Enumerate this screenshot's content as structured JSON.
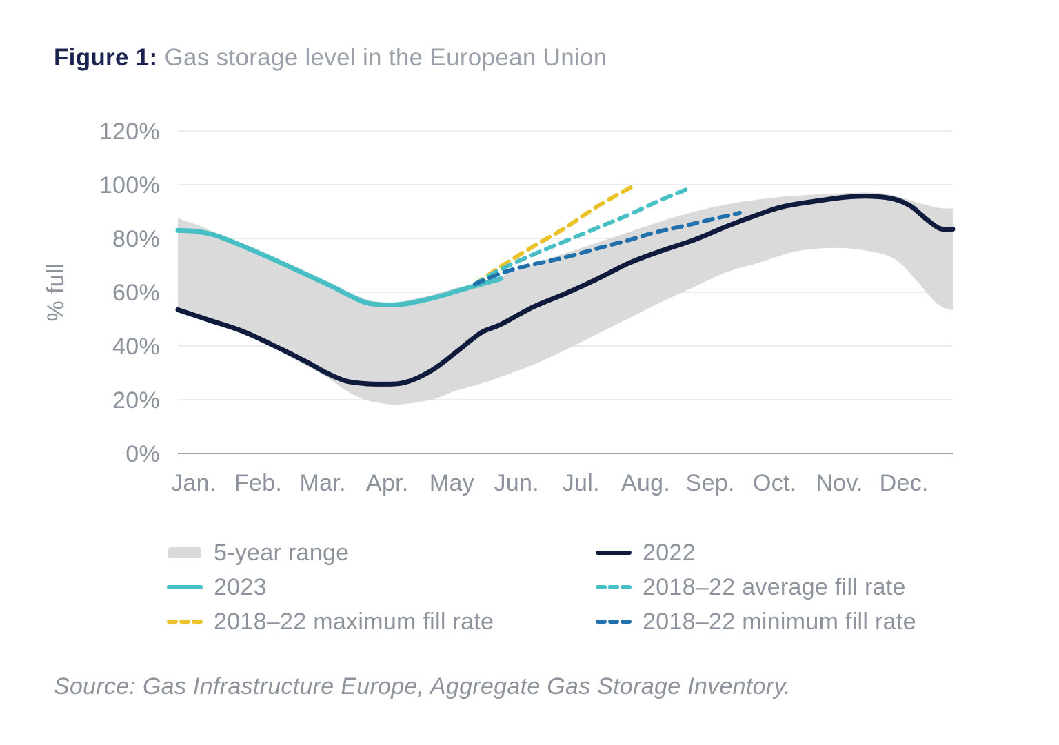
{
  "title": {
    "prefix": "Figure 1:",
    "text": "Gas storage level in the European Union"
  },
  "source": "Source: Gas Infrastructure Europe, Aggregate Gas Storage Inventory.",
  "colors": {
    "title_prefix": "#1B2351",
    "title_text": "#9AA0A9",
    "axis_text": "#8D939C",
    "gridline": "#E4E5E7",
    "axis_line": "#9CA1A7",
    "band": "#DADADB",
    "navy": "#0F1B3D",
    "teal": "#47BFC5",
    "yellow": "#EAC32B",
    "blue": "#2170AC",
    "background": "#FFFFFF"
  },
  "chart_data": {
    "type": "area+line",
    "title": "Gas storage level in the European Union",
    "ylabel": "% full",
    "ylim": [
      0,
      120
    ],
    "ytick_step": 20,
    "ytick_labels": [
      "0%",
      "20%",
      "40%",
      "60%",
      "80%",
      "100%",
      "120%"
    ],
    "x_months": [
      "Jan.",
      "Feb.",
      "Mar.",
      "Apr.",
      "May",
      "Jun.",
      "Jul.",
      "Aug.",
      "Sep.",
      "Oct.",
      "Nov.",
      "Dec."
    ],
    "x_unit": "months, 0 = Jan 1 through 12 = Dec 31",
    "grid": "horizontal gridlines only",
    "legend_position": "below chart, two columns",
    "band": {
      "name": "5-year range",
      "slug": "band-5-year-range",
      "top": [
        [
          0,
          87.5
        ],
        [
          0.3,
          85
        ],
        [
          0.6,
          82
        ],
        [
          1,
          78.2
        ],
        [
          1.5,
          73
        ],
        [
          2,
          67.5
        ],
        [
          2.4,
          63
        ],
        [
          2.7,
          59.5
        ],
        [
          3,
          56.8
        ],
        [
          3.3,
          56
        ],
        [
          3.55,
          57
        ],
        [
          3.9,
          58.8
        ],
        [
          4.3,
          61.5
        ],
        [
          4.7,
          63.8
        ],
        [
          5,
          66
        ],
        [
          5.5,
          70.5
        ],
        [
          6,
          74.5
        ],
        [
          6.5,
          78.5
        ],
        [
          7,
          82.5
        ],
        [
          7.5,
          86.5
        ],
        [
          8,
          90
        ],
        [
          8.5,
          92.7
        ],
        [
          9,
          94.5
        ],
        [
          9.5,
          95.8
        ],
        [
          10,
          96.5
        ],
        [
          10.5,
          97
        ],
        [
          10.9,
          96.8
        ],
        [
          11.2,
          95.2
        ],
        [
          11.5,
          93
        ],
        [
          11.8,
          91.3
        ],
        [
          12,
          91.2
        ]
      ],
      "bottom": [
        [
          0,
          53.3
        ],
        [
          0.5,
          49.2
        ],
        [
          1,
          45
        ],
        [
          1.5,
          39
        ],
        [
          2,
          32.5
        ],
        [
          2.3,
          28.5
        ],
        [
          2.6,
          23.5
        ],
        [
          2.9,
          20
        ],
        [
          3.2,
          18.5
        ],
        [
          3.4,
          18.2
        ],
        [
          3.7,
          19
        ],
        [
          4,
          20.5
        ],
        [
          4.3,
          23.3
        ],
        [
          4.7,
          26
        ],
        [
          5,
          28.5
        ],
        [
          5.5,
          33
        ],
        [
          6,
          38.5
        ],
        [
          6.5,
          44.5
        ],
        [
          7,
          50.5
        ],
        [
          7.5,
          56.5
        ],
        [
          8,
          62
        ],
        [
          8.5,
          67.5
        ],
        [
          9,
          71
        ],
        [
          9.5,
          74.8
        ],
        [
          9.9,
          76.2
        ],
        [
          10.3,
          76.4
        ],
        [
          10.7,
          75.3
        ],
        [
          11,
          73.5
        ],
        [
          11.2,
          70.5
        ],
        [
          11.45,
          64
        ],
        [
          11.7,
          57
        ],
        [
          11.85,
          54.3
        ],
        [
          12,
          53.3
        ]
      ]
    },
    "series": [
      {
        "name": "2022",
        "slug": "line-2022",
        "style": "solid",
        "color": "navy",
        "points": [
          [
            0,
            53.5
          ],
          [
            0.5,
            49.5
          ],
          [
            1,
            45.5
          ],
          [
            1.5,
            40
          ],
          [
            2,
            34
          ],
          [
            2.3,
            30
          ],
          [
            2.6,
            27
          ],
          [
            2.9,
            26
          ],
          [
            3.2,
            25.8
          ],
          [
            3.45,
            26.1
          ],
          [
            3.7,
            28
          ],
          [
            4,
            32
          ],
          [
            4.35,
            38.5
          ],
          [
            4.7,
            45
          ],
          [
            5,
            48
          ],
          [
            5.5,
            54.5
          ],
          [
            6,
            59.5
          ],
          [
            6.5,
            65
          ],
          [
            7,
            71
          ],
          [
            7.5,
            75.5
          ],
          [
            8,
            79.5
          ],
          [
            8.5,
            84.5
          ],
          [
            9,
            89
          ],
          [
            9.4,
            92
          ],
          [
            10,
            94.3
          ],
          [
            10.4,
            95.5
          ],
          [
            10.8,
            95.6
          ],
          [
            11.1,
            94.6
          ],
          [
            11.35,
            92
          ],
          [
            11.6,
            87
          ],
          [
            11.8,
            83.7
          ],
          [
            12,
            83.5
          ]
        ]
      },
      {
        "name": "2023",
        "slug": "line-2023",
        "style": "solid",
        "color": "teal",
        "points": [
          [
            0,
            83
          ],
          [
            0.3,
            82.6
          ],
          [
            0.6,
            81
          ],
          [
            1,
            77.2
          ],
          [
            1.5,
            72
          ],
          [
            2,
            66.5
          ],
          [
            2.4,
            62
          ],
          [
            2.6,
            59.5
          ],
          [
            2.9,
            56.2
          ],
          [
            3.2,
            55.3
          ],
          [
            3.5,
            55.6
          ],
          [
            3.8,
            57
          ],
          [
            4.1,
            58.8
          ],
          [
            4.4,
            61
          ],
          [
            4.7,
            63
          ],
          [
            5,
            65
          ]
        ]
      },
      {
        "name": "2018–22 maximum fill rate",
        "slug": "line-2018-22-maximum-fill-rate",
        "style": "dashed",
        "color": "yellow",
        "points": [
          [
            4.6,
            63
          ],
          [
            5,
            69.5
          ],
          [
            5.5,
            77
          ],
          [
            6,
            84
          ],
          [
            6.5,
            92
          ],
          [
            7.05,
            99.5
          ]
        ]
      },
      {
        "name": "2018–22 average fill rate",
        "slug": "line-2018-22-average-fill-rate",
        "style": "dashed",
        "color": "teal",
        "points": [
          [
            4.6,
            63
          ],
          [
            5,
            68.5
          ],
          [
            5.5,
            74
          ],
          [
            6,
            79
          ],
          [
            6.5,
            84
          ],
          [
            7,
            89
          ],
          [
            7.45,
            94
          ],
          [
            7.9,
            98.5
          ]
        ]
      },
      {
        "name": "2018–22 minimum fill rate",
        "slug": "line-2018-22-minimum-fill-rate",
        "style": "dashed",
        "color": "blue",
        "points": [
          [
            4.6,
            63
          ],
          [
            5,
            67
          ],
          [
            5.4,
            69.8
          ],
          [
            6,
            73
          ],
          [
            6.5,
            76.3
          ],
          [
            7,
            79.5
          ],
          [
            7.4,
            82.3
          ],
          [
            7.9,
            85
          ],
          [
            8.3,
            87.3
          ],
          [
            8.7,
            89.5
          ]
        ]
      }
    ],
    "legend": {
      "columns": [
        [
          {
            "label": "5-year range",
            "marker": "band",
            "color": "band",
            "slug": "legend-5-year-range"
          },
          {
            "label": "2023",
            "marker": "solid",
            "color": "teal",
            "slug": "legend-2023"
          },
          {
            "label": "2018–22 maximum fill rate",
            "marker": "dashed",
            "color": "yellow",
            "slug": "legend-2018-22-maximum-fill-rate"
          }
        ],
        [
          {
            "label": "2022",
            "marker": "solid",
            "color": "navy",
            "slug": "legend-2022"
          },
          {
            "label": "2018–22 average fill rate",
            "marker": "dashed",
            "color": "teal",
            "slug": "legend-2018-22-average-fill-rate"
          },
          {
            "label": "2018–22 minimum fill rate",
            "marker": "dashed",
            "color": "blue",
            "slug": "legend-2018-22-minimum-fill-rate"
          }
        ]
      ]
    }
  }
}
